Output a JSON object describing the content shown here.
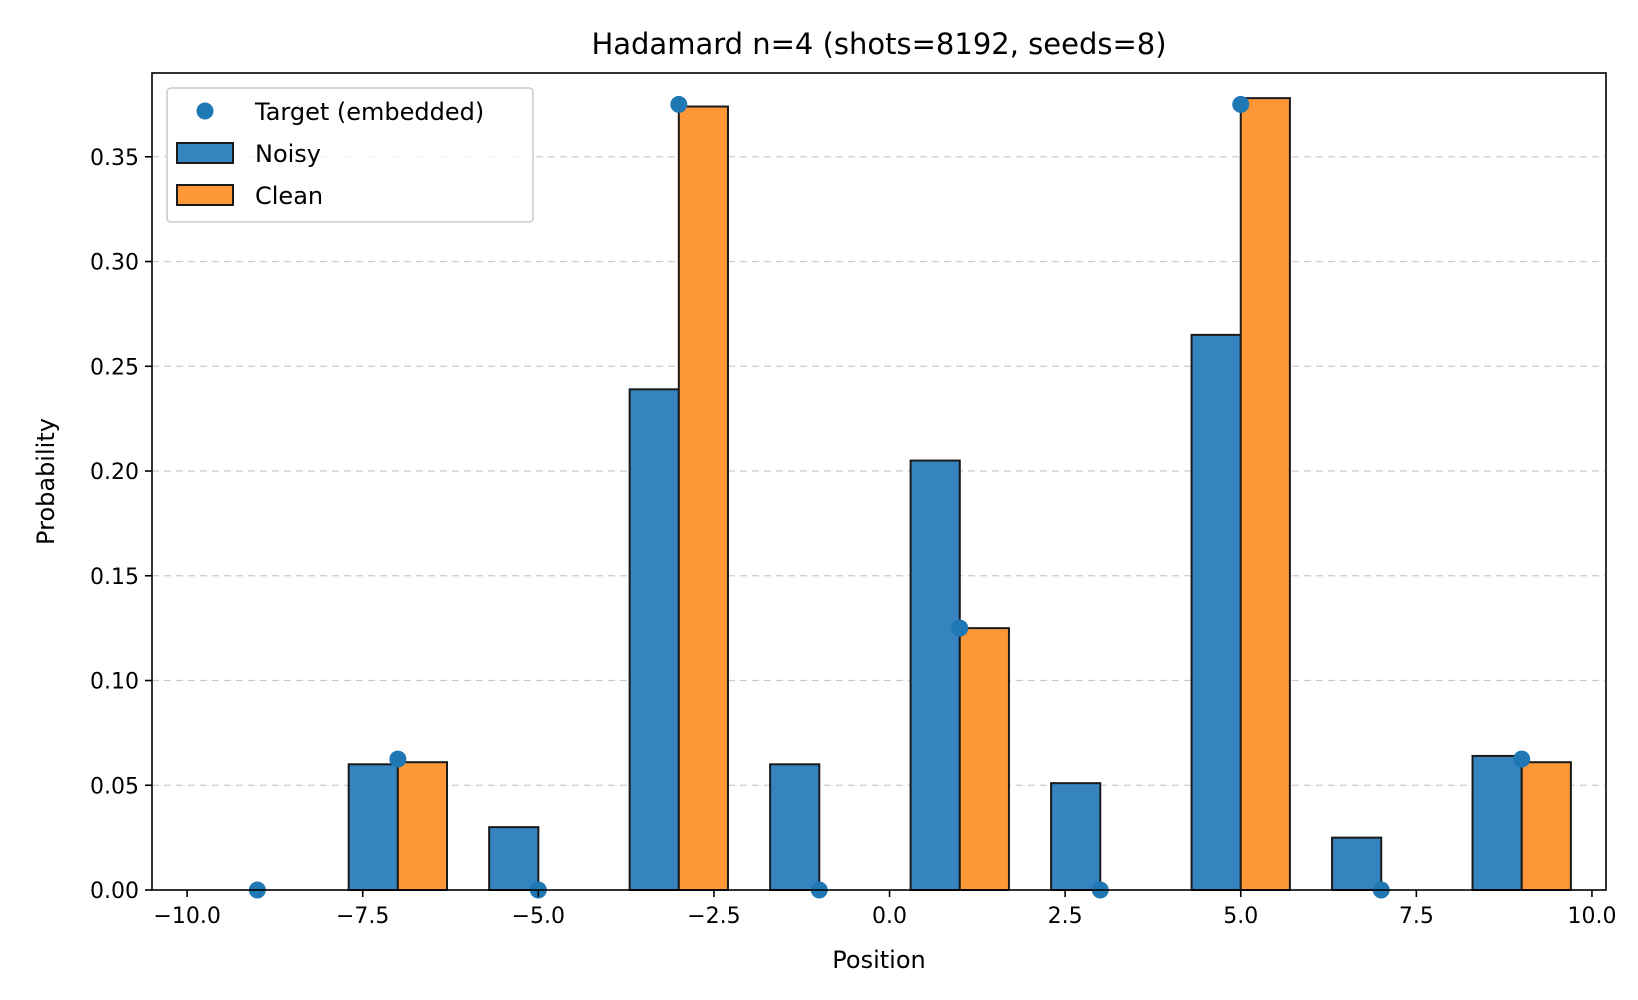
{
  "chart_data": {
    "type": "bar",
    "title": "Hadamard n=4 (shots=8192, seeds=8)",
    "xlabel": "Position",
    "ylabel": "Probability",
    "xlim": [
      -10.5,
      10.2
    ],
    "ylim": [
      0,
      0.39
    ],
    "xticks": [
      -10.0,
      -7.5,
      -5.0,
      -2.5,
      0.0,
      2.5,
      5.0,
      7.5,
      10.0
    ],
    "xtick_labels": [
      "−10.0",
      "−7.5",
      "−5.0",
      "−2.5",
      "0.0",
      "2.5",
      "5.0",
      "7.5",
      "10.0"
    ],
    "yticks": [
      0.0,
      0.05,
      0.1,
      0.15,
      0.2,
      0.25,
      0.3,
      0.35
    ],
    "ytick_labels": [
      "0.00",
      "0.05",
      "0.10",
      "0.15",
      "0.20",
      "0.25",
      "0.30",
      "0.35"
    ],
    "grid": "y-dashed",
    "legend_position": "top-left",
    "x": [
      -9,
      -7,
      -5,
      -3,
      -1,
      1,
      3,
      5,
      7,
      9
    ],
    "series": [
      {
        "name": "Noisy",
        "kind": "bar",
        "offset": -0.35,
        "color": "#3584bf",
        "values": [
          0.0,
          0.06,
          0.03,
          0.239,
          0.06,
          0.205,
          0.051,
          0.265,
          0.025,
          0.064
        ]
      },
      {
        "name": "Clean",
        "kind": "bar",
        "offset": 0.35,
        "color": "#fe9735",
        "values": [
          0.0,
          0.061,
          0.0,
          0.374,
          0.0,
          0.125,
          0.0,
          0.378,
          0.0,
          0.061
        ]
      },
      {
        "name": "Target (embedded)",
        "kind": "points",
        "color": "#1f77b4",
        "values": [
          0.0,
          0.0625,
          0.0,
          0.375,
          0.0,
          0.125,
          0.0,
          0.375,
          0.0,
          0.0625
        ]
      }
    ],
    "legend_order": [
      "Target (embedded)",
      "Noisy",
      "Clean"
    ]
  }
}
